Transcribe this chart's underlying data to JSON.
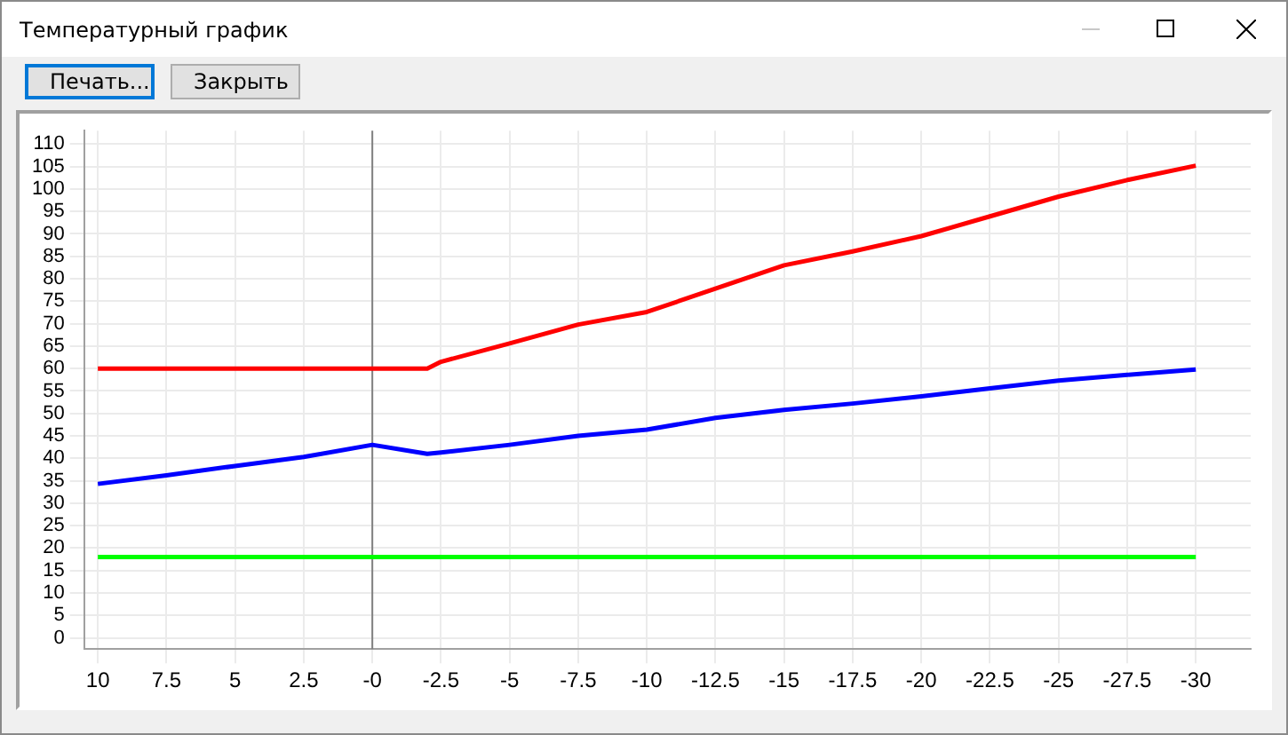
{
  "chart_data": {
    "type": "line",
    "title": "Температурный график",
    "annotations": [
      "Печать...",
      "Закрыть"
    ],
    "xlim": [
      10.5,
      -32
    ],
    "ylim": [
      -2.5,
      113
    ],
    "xticks": [
      10,
      7.5,
      5,
      2.5,
      {
        "value": 0,
        "label": "-0"
      },
      -2.5,
      -5,
      -7.5,
      -10,
      -12.5,
      -15,
      -17.5,
      -20,
      -22.5,
      -25,
      -27.5,
      -30
    ],
    "yticks": [
      0,
      5,
      10,
      15,
      20,
      25,
      30,
      35,
      40,
      45,
      50,
      55,
      60,
      65,
      70,
      75,
      80,
      85,
      90,
      95,
      100,
      105,
      110
    ],
    "grid": true,
    "legend": false,
    "marker": "none",
    "line_style": "solid",
    "ref_lines": [
      {
        "axis": "x",
        "value": 0,
        "color": "#808080"
      }
    ],
    "series": [
      {
        "color": "#ff0000",
        "x": [
          10,
          7.5,
          5,
          2.5,
          0,
          -2,
          -2.5,
          -5,
          -7.5,
          -10,
          -12.5,
          -15,
          -17.5,
          -20,
          -22.5,
          -25,
          -27.5,
          -30
        ],
        "values": [
          60,
          60,
          60,
          60,
          60,
          60,
          61.5,
          65.6,
          69.8,
          72.6,
          77.8,
          83,
          86.1,
          89.5,
          93.9,
          98.3,
          102,
          105.2
        ]
      },
      {
        "color": "#0000ff",
        "x": [
          10,
          7.5,
          5,
          2.5,
          0,
          -2,
          -2.5,
          -5,
          -7.5,
          -10,
          -12.5,
          -15,
          -17.5,
          -20,
          -22.5,
          -25,
          -27.5,
          -30
        ],
        "values": [
          34.3,
          36.2,
          38.3,
          40.3,
          43,
          41,
          41.3,
          43,
          45,
          46.4,
          49,
          50.8,
          52.2,
          53.8,
          55.6,
          57.3,
          58.6,
          59.8
        ]
      },
      {
        "color": "#00ff00",
        "x": [
          10,
          -30
        ],
        "values": [
          18,
          18
        ]
      }
    ]
  }
}
